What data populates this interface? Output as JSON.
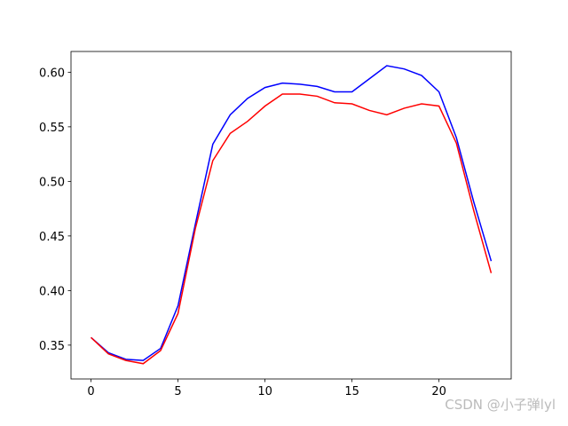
{
  "chart_data": {
    "type": "line",
    "x": [
      0,
      1,
      2,
      3,
      4,
      5,
      6,
      7,
      8,
      9,
      10,
      11,
      12,
      13,
      14,
      15,
      16,
      17,
      18,
      19,
      20,
      21,
      22,
      23
    ],
    "series": [
      {
        "color": "#0000ff",
        "values": [
          0.357,
          0.343,
          0.337,
          0.336,
          0.347,
          0.386,
          0.461,
          0.534,
          0.561,
          0.576,
          0.586,
          0.59,
          0.589,
          0.587,
          0.582,
          0.582,
          0.594,
          0.606,
          0.603,
          0.597,
          0.582,
          0.54,
          0.481,
          0.427
        ]
      },
      {
        "color": "#ff0000",
        "values": [
          0.357,
          0.342,
          0.336,
          0.333,
          0.345,
          0.379,
          0.457,
          0.519,
          0.544,
          0.555,
          0.569,
          0.58,
          0.58,
          0.578,
          0.572,
          0.571,
          0.565,
          0.561,
          0.567,
          0.571,
          0.569,
          0.535,
          0.473,
          0.416
        ]
      }
    ],
    "xlim": [
      -1.15,
      24.15
    ],
    "xticks": [
      0,
      5,
      10,
      15,
      20
    ],
    "ylim": [
      0.319,
      0.619
    ],
    "yticks": [
      0.35,
      {
        "value": 0.4,
        "label": "0.40"
      },
      0.45,
      {
        "value": 0.5,
        "label": "0.50"
      },
      0.55,
      {
        "value": 0.6,
        "label": "0.60"
      }
    ],
    "watermark": "CSDN @小子弹lyl"
  }
}
